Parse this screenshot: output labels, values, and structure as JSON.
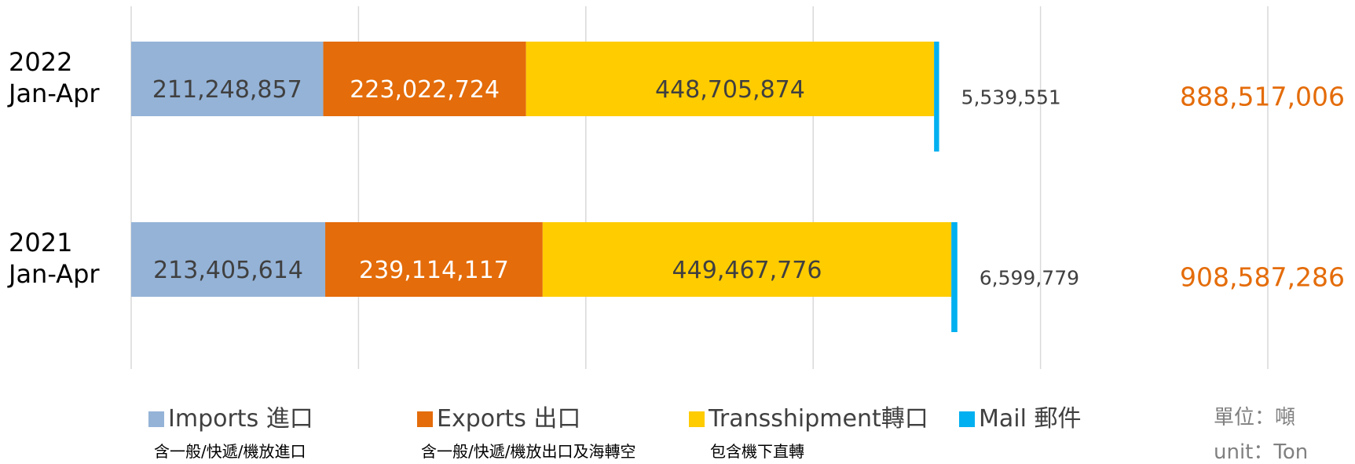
{
  "chart_data": {
    "type": "stacked-barh",
    "categories": [
      "2022 Jan-Apr",
      "2021 Jan-Apr"
    ],
    "series": [
      {
        "name": "Imports 進口",
        "note": "含一般/快遞/機放進口",
        "color": "#95b3d7",
        "label_color": "#404040",
        "values": [
          211248857,
          213405614
        ],
        "value_labels": [
          "211,248,857",
          "213,405,614"
        ]
      },
      {
        "name": "Exports 出口",
        "note": "含一般/快遞/機放出口及海轉空",
        "color": "#e46c0a",
        "label_color": "#ffffff",
        "values": [
          223022724,
          239114117
        ],
        "value_labels": [
          "223,022,724",
          "239,114,117"
        ]
      },
      {
        "name": "Transshipment轉口",
        "note": "包含機下直轉",
        "color": "#ffcc00",
        "label_color": "#404040",
        "values": [
          448705874,
          449467776
        ],
        "value_labels": [
          "448,705,874",
          "449,467,776"
        ]
      },
      {
        "name": "Mail 郵件",
        "color": "#00b0f0",
        "label_color": "#404040",
        "values": [
          5539551,
          6599779
        ],
        "value_labels": [
          "5,539,551",
          "6,599,779"
        ]
      }
    ],
    "totals": {
      "values": [
        888517006,
        908587286
      ],
      "value_labels": [
        "888,517,006",
        "908,587,286"
      ],
      "color": "#e46c0a"
    },
    "xlim": [
      0,
      1250000000
    ],
    "xticks": [
      0,
      250000000,
      500000000,
      750000000,
      1000000000,
      1250000000
    ],
    "grid": true,
    "unit": [
      "單位：噸",
      "unit：Ton"
    ]
  }
}
